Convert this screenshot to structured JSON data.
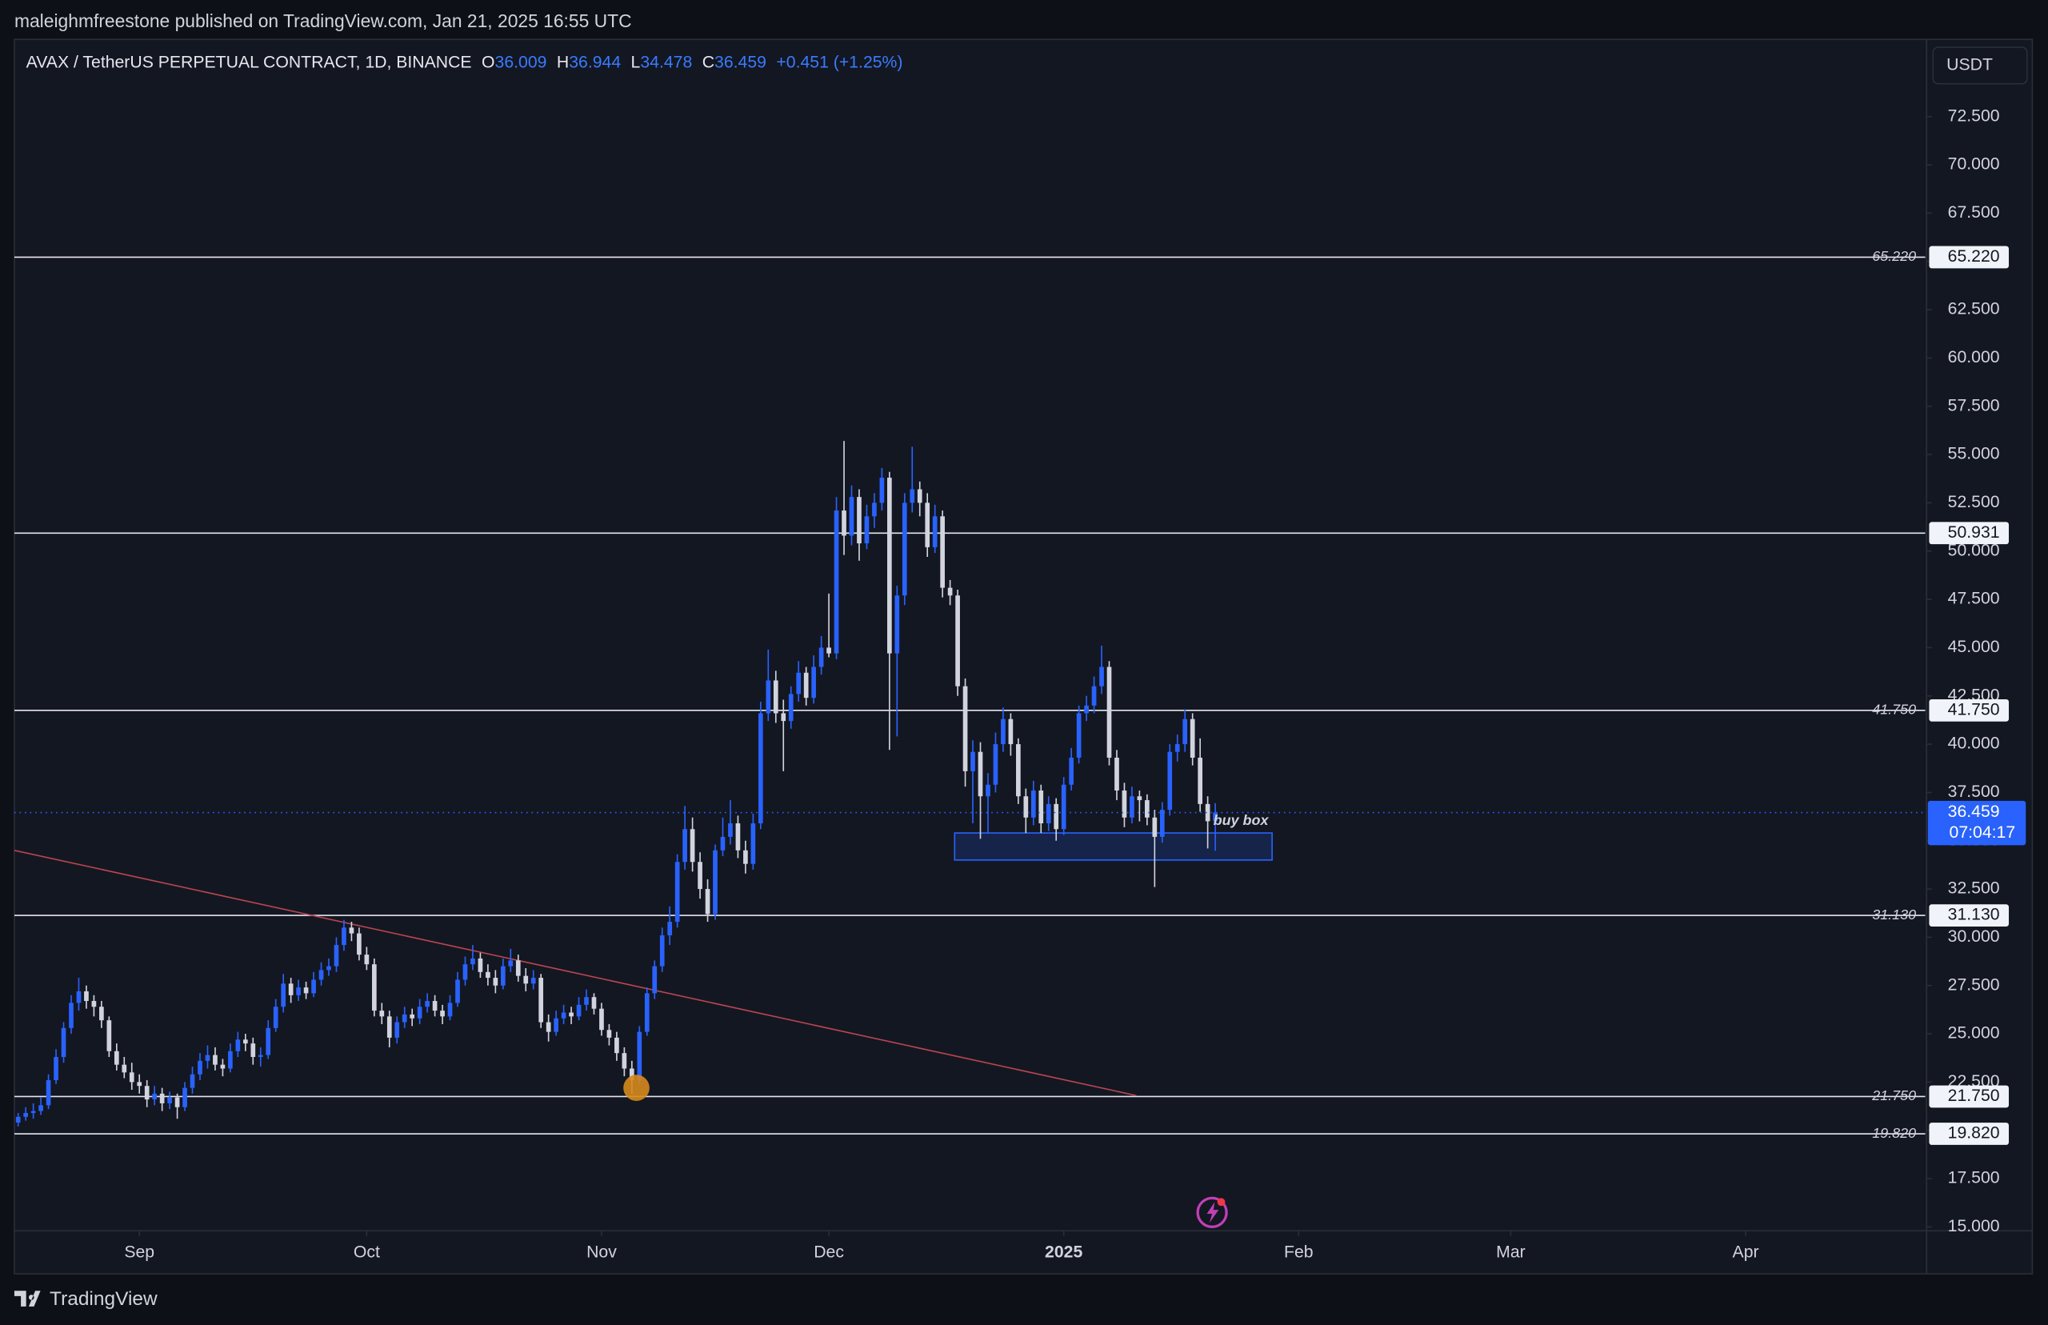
{
  "publish_line": "maleighmfreestone published on TradingView.com, Jan 21, 2025 16:55 UTC",
  "brand": "TradingView",
  "chart_data": {
    "type": "candlestick",
    "symbol": "AVAX / TetherUS PERPETUAL CONTRACT, 1D, BINANCE",
    "ohlc_labels": [
      "O",
      "H",
      "L",
      "C"
    ],
    "change": "+0.451",
    "change_pct": "(+1.25%)",
    "currency": "USDT",
    "countdown": "07:04:17",
    "up_color": "#2962ff",
    "down_color": "#d1d4dc",
    "ohlc": [
      [
        20.4,
        20.9,
        20.2,
        20.7
      ],
      [
        20.7,
        21.2,
        20.5,
        20.9
      ],
      [
        20.9,
        21.4,
        20.6,
        21.0
      ],
      [
        21.0,
        21.7,
        20.8,
        21.3
      ],
      [
        21.3,
        22.9,
        21.1,
        22.6
      ],
      [
        22.6,
        24.2,
        22.4,
        23.8
      ],
      [
        23.8,
        25.6,
        23.5,
        25.3
      ],
      [
        25.3,
        27.0,
        25.0,
        26.6
      ],
      [
        26.6,
        27.9,
        26.2,
        27.2
      ],
      [
        27.2,
        27.5,
        26.3,
        26.7
      ],
      [
        26.7,
        27.0,
        25.9,
        26.4
      ],
      [
        26.4,
        26.7,
        25.3,
        25.7
      ],
      [
        25.7,
        25.9,
        23.8,
        24.1
      ],
      [
        24.1,
        24.5,
        23.1,
        23.4
      ],
      [
        23.4,
        23.8,
        22.7,
        23.0
      ],
      [
        23.0,
        23.5,
        22.1,
        22.5
      ],
      [
        22.5,
        22.9,
        21.9,
        22.3
      ],
      [
        22.3,
        22.6,
        21.2,
        21.6
      ],
      [
        21.6,
        22.3,
        21.3,
        21.9
      ],
      [
        21.9,
        22.2,
        21.0,
        21.4
      ],
      [
        21.4,
        22.0,
        21.1,
        21.7
      ],
      [
        21.7,
        21.9,
        20.6,
        21.2
      ],
      [
        21.2,
        22.5,
        21.0,
        22.2
      ],
      [
        22.2,
        23.3,
        21.9,
        22.9
      ],
      [
        22.9,
        24.0,
        22.6,
        23.6
      ],
      [
        23.6,
        24.4,
        23.2,
        23.9
      ],
      [
        23.9,
        24.3,
        23.1,
        23.4
      ],
      [
        23.4,
        23.7,
        22.8,
        23.2
      ],
      [
        23.2,
        24.5,
        23.0,
        24.1
      ],
      [
        24.1,
        25.1,
        23.8,
        24.7
      ],
      [
        24.7,
        25.0,
        24.1,
        24.5
      ],
      [
        24.5,
        24.8,
        23.4,
        23.8
      ],
      [
        23.8,
        24.3,
        23.3,
        23.9
      ],
      [
        23.9,
        25.7,
        23.7,
        25.3
      ],
      [
        25.3,
        26.8,
        25.1,
        26.4
      ],
      [
        26.4,
        28.1,
        26.1,
        27.6
      ],
      [
        27.6,
        27.9,
        26.6,
        27.0
      ],
      [
        27.0,
        27.8,
        26.7,
        27.4
      ],
      [
        27.4,
        27.7,
        26.8,
        27.1
      ],
      [
        27.1,
        28.2,
        26.9,
        27.8
      ],
      [
        27.8,
        28.7,
        27.5,
        28.3
      ],
      [
        28.3,
        28.9,
        28.0,
        28.5
      ],
      [
        28.5,
        30.0,
        28.2,
        29.6
      ],
      [
        29.6,
        30.9,
        29.3,
        30.5
      ],
      [
        30.5,
        30.8,
        29.8,
        30.2
      ],
      [
        30.2,
        30.5,
        28.8,
        29.1
      ],
      [
        29.1,
        29.5,
        28.3,
        28.6
      ],
      [
        28.6,
        28.9,
        25.9,
        26.2
      ],
      [
        26.2,
        26.6,
        25.5,
        25.9
      ],
      [
        25.9,
        26.2,
        24.3,
        24.8
      ],
      [
        24.8,
        25.9,
        24.5,
        25.6
      ],
      [
        25.6,
        26.4,
        25.3,
        26.0
      ],
      [
        26.0,
        26.3,
        25.4,
        25.8
      ],
      [
        25.8,
        26.8,
        25.5,
        26.4
      ],
      [
        26.4,
        27.1,
        26.1,
        26.7
      ],
      [
        26.7,
        27.0,
        25.9,
        26.2
      ],
      [
        26.2,
        26.5,
        25.5,
        25.9
      ],
      [
        25.9,
        27.0,
        25.7,
        26.6
      ],
      [
        26.6,
        28.2,
        26.4,
        27.8
      ],
      [
        27.8,
        29.0,
        27.5,
        28.6
      ],
      [
        28.6,
        29.6,
        28.3,
        28.9
      ],
      [
        28.9,
        29.2,
        27.9,
        28.2
      ],
      [
        28.2,
        28.6,
        27.5,
        27.9
      ],
      [
        27.9,
        28.3,
        27.1,
        27.5
      ],
      [
        27.5,
        28.9,
        27.3,
        28.5
      ],
      [
        28.5,
        29.4,
        28.2,
        28.8
      ],
      [
        28.8,
        29.1,
        27.7,
        28.0
      ],
      [
        28.0,
        28.4,
        27.2,
        27.6
      ],
      [
        27.6,
        28.3,
        27.3,
        27.9
      ],
      [
        27.9,
        28.1,
        25.3,
        25.6
      ],
      [
        25.6,
        26.0,
        24.6,
        25.1
      ],
      [
        25.1,
        26.2,
        24.9,
        25.8
      ],
      [
        25.8,
        26.5,
        25.5,
        26.1
      ],
      [
        26.1,
        26.4,
        25.5,
        25.9
      ],
      [
        25.9,
        26.9,
        25.7,
        26.5
      ],
      [
        26.5,
        27.3,
        26.2,
        26.9
      ],
      [
        26.9,
        27.1,
        26.0,
        26.3
      ],
      [
        26.3,
        26.6,
        24.9,
        25.2
      ],
      [
        25.2,
        25.5,
        24.4,
        24.8
      ],
      [
        24.8,
        25.1,
        23.6,
        24.0
      ],
      [
        24.0,
        24.3,
        22.8,
        23.2
      ],
      [
        23.2,
        23.6,
        21.9,
        22.6
      ],
      [
        22.6,
        25.4,
        22.4,
        25.1
      ],
      [
        25.1,
        27.4,
        24.9,
        27.1
      ],
      [
        27.1,
        28.8,
        26.8,
        28.5
      ],
      [
        28.5,
        30.5,
        28.2,
        30.1
      ],
      [
        30.1,
        31.6,
        29.6,
        30.8
      ],
      [
        30.8,
        34.3,
        30.5,
        33.9
      ],
      [
        33.9,
        36.8,
        33.5,
        35.6
      ],
      [
        35.6,
        36.2,
        33.4,
        33.9
      ],
      [
        33.9,
        34.4,
        32.0,
        32.5
      ],
      [
        32.5,
        33.0,
        30.8,
        31.2
      ],
      [
        31.2,
        34.8,
        30.9,
        34.5
      ],
      [
        34.5,
        36.2,
        34.2,
        35.2
      ],
      [
        35.2,
        37.1,
        34.8,
        35.9
      ],
      [
        35.9,
        36.3,
        34.1,
        34.5
      ],
      [
        34.5,
        35.0,
        33.3,
        33.8
      ],
      [
        33.8,
        36.4,
        33.5,
        35.9
      ],
      [
        35.9,
        42.2,
        35.6,
        41.6
      ],
      [
        41.6,
        44.9,
        41.2,
        43.3
      ],
      [
        43.3,
        43.8,
        41.1,
        41.6
      ],
      [
        41.6,
        42.3,
        38.6,
        41.2
      ],
      [
        41.2,
        43.0,
        40.8,
        42.6
      ],
      [
        42.6,
        44.3,
        42.2,
        43.7
      ],
      [
        43.7,
        44.0,
        42.0,
        42.4
      ],
      [
        42.4,
        44.6,
        42.1,
        44.0
      ],
      [
        44.0,
        45.6,
        43.6,
        45.0
      ],
      [
        45.0,
        47.8,
        44.5,
        44.7
      ],
      [
        44.7,
        52.8,
        44.4,
        52.1
      ],
      [
        52.1,
        55.7,
        49.8,
        50.8
      ],
      [
        50.8,
        53.4,
        50.3,
        52.8
      ],
      [
        52.8,
        53.2,
        49.5,
        50.4
      ],
      [
        50.4,
        52.4,
        50.1,
        51.8
      ],
      [
        51.8,
        53.0,
        51.2,
        52.5
      ],
      [
        52.5,
        54.3,
        52.1,
        53.8
      ],
      [
        53.8,
        54.1,
        39.7,
        44.7
      ],
      [
        44.7,
        48.2,
        40.4,
        47.7
      ],
      [
        47.7,
        53.0,
        47.2,
        52.5
      ],
      [
        52.5,
        55.4,
        52.0,
        53.2
      ],
      [
        53.2,
        53.6,
        51.8,
        52.5
      ],
      [
        52.5,
        53.0,
        49.7,
        50.2
      ],
      [
        50.2,
        52.4,
        49.9,
        51.8
      ],
      [
        51.8,
        52.1,
        47.6,
        48.1
      ],
      [
        48.1,
        48.5,
        47.2,
        47.7
      ],
      [
        47.7,
        48.0,
        42.5,
        43.0
      ],
      [
        43.0,
        43.4,
        37.8,
        38.6
      ],
      [
        38.6,
        40.2,
        35.9,
        39.6
      ],
      [
        39.6,
        40.1,
        35.1,
        37.3
      ],
      [
        37.3,
        38.5,
        35.4,
        37.9
      ],
      [
        37.9,
        40.6,
        37.5,
        40.0
      ],
      [
        40.0,
        41.9,
        39.6,
        41.3
      ],
      [
        41.3,
        41.6,
        39.4,
        40.0
      ],
      [
        40.0,
        40.3,
        36.9,
        37.3
      ],
      [
        37.3,
        37.7,
        35.4,
        36.2
      ],
      [
        36.2,
        38.1,
        35.8,
        37.6
      ],
      [
        37.6,
        37.9,
        35.4,
        35.9
      ],
      [
        35.9,
        37.3,
        35.5,
        36.9
      ],
      [
        36.9,
        37.2,
        35.0,
        35.6
      ],
      [
        35.6,
        38.3,
        35.3,
        37.9
      ],
      [
        37.9,
        39.8,
        37.6,
        39.3
      ],
      [
        39.3,
        42.0,
        39.0,
        41.6
      ],
      [
        41.6,
        42.5,
        41.2,
        42.0
      ],
      [
        42.0,
        43.5,
        41.6,
        43.0
      ],
      [
        43.0,
        45.1,
        42.6,
        44.0
      ],
      [
        44.0,
        44.3,
        38.9,
        39.3
      ],
      [
        39.3,
        39.7,
        37.1,
        37.6
      ],
      [
        37.6,
        38.0,
        35.7,
        36.2
      ],
      [
        36.2,
        37.8,
        35.9,
        37.3
      ],
      [
        37.3,
        37.6,
        36.0,
        37.1
      ],
      [
        37.1,
        37.4,
        35.8,
        36.2
      ],
      [
        36.2,
        36.6,
        32.6,
        35.2
      ],
      [
        35.2,
        37.0,
        34.9,
        36.6
      ],
      [
        36.6,
        40.0,
        36.3,
        39.6
      ],
      [
        39.6,
        40.5,
        39.1,
        40.0
      ],
      [
        40.0,
        41.8,
        39.6,
        41.3
      ],
      [
        41.3,
        41.6,
        38.9,
        39.3
      ],
      [
        39.3,
        40.3,
        36.5,
        36.9
      ],
      [
        36.9,
        37.3,
        34.6,
        36.009
      ],
      [
        36.009,
        36.944,
        34.478,
        36.459
      ]
    ],
    "xlim": [
      -0.5,
      251.7
    ],
    "xticks": [
      {
        "value": 16,
        "label": "Sep"
      },
      {
        "value": 46,
        "label": "Oct"
      },
      {
        "value": 77,
        "label": "Nov"
      },
      {
        "value": 107,
        "label": "Dec"
      },
      {
        "value": 138,
        "label": "2025"
      },
      {
        "value": 169,
        "label": "Feb"
      },
      {
        "value": 197,
        "label": "Mar"
      },
      {
        "value": 228,
        "label": "Apr"
      }
    ],
    "ylim": [
      14.8,
      76.5
    ],
    "yticks": [
      {
        "value": 15,
        "label": "15.000"
      },
      {
        "value": 17.5,
        "label": "17.500"
      },
      {
        "value": 20,
        "label": "20.000"
      },
      {
        "value": 22.5,
        "label": "22.500"
      },
      {
        "value": 25,
        "label": "25.000"
      },
      {
        "value": 27.5,
        "label": "27.500"
      },
      {
        "value": 30,
        "label": "30.000"
      },
      {
        "value": 32.5,
        "label": "32.500"
      },
      {
        "value": 35,
        "label": "35.000"
      },
      {
        "value": 37.5,
        "label": "37.500"
      },
      {
        "value": 40,
        "label": "40.000"
      },
      {
        "value": 42.5,
        "label": "42.500"
      },
      {
        "value": 45,
        "label": "45.000"
      },
      {
        "value": 47.5,
        "label": "47.500"
      },
      {
        "value": 50,
        "label": "50.000"
      },
      {
        "value": 52.5,
        "label": "52.500"
      },
      {
        "value": 55,
        "label": "55.000"
      },
      {
        "value": 57.5,
        "label": "57.500"
      },
      {
        "value": 60,
        "label": "60.000"
      },
      {
        "value": 62.5,
        "label": "62.500"
      },
      {
        "value": 65,
        "label": "65.000"
      },
      {
        "value": 67.5,
        "label": "67.500"
      },
      {
        "value": 70,
        "label": "70.000"
      },
      {
        "value": 72.5,
        "label": "72.500"
      }
    ],
    "levels": [
      {
        "value": 65.22,
        "label": "65.220",
        "side_label": true
      },
      {
        "value": 50.931,
        "label": "50.931",
        "side_label": false
      },
      {
        "value": 41.75,
        "label": "41.750",
        "side_label": true
      },
      {
        "value": 31.13,
        "label": "31.130",
        "side_label": true
      },
      {
        "value": 21.75,
        "label": "21.750",
        "side_label": true
      },
      {
        "value": 19.82,
        "label": "19.820",
        "side_label": true
      }
    ],
    "trendline": {
      "x": [
        -0.5,
        147.6
      ],
      "y": [
        34.5,
        21.8
      ],
      "color": "#b8454f"
    },
    "buy_box": {
      "x": [
        123.6,
        165.5
      ],
      "y": [
        34.0,
        35.4
      ],
      "label": "buy box",
      "color": "#2962ff"
    },
    "marker": {
      "x": 81.6,
      "y": 22.2,
      "color": "#d68a1c"
    }
  }
}
